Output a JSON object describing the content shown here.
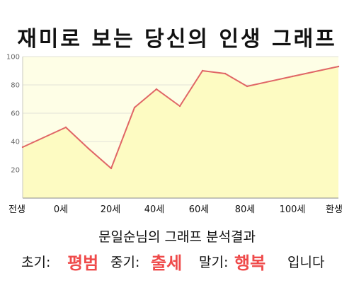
{
  "title": "재미로 보는 당신의 인생 그래프",
  "subtitle": "문일순님의 그래프 분석결과",
  "result": {
    "early_label": "초기:",
    "early_value": "평범",
    "middle_label": "중기:",
    "middle_value": "출세",
    "late_label": "말기:",
    "late_value": "행복",
    "ending": "입니다"
  },
  "colors": {
    "line": "#e06666",
    "fill": "#fdfbc2",
    "plot_bg": "#fefee6",
    "grid": "#e2e2d8",
    "highlight": "#ef4a4a"
  },
  "chart_data": {
    "type": "area",
    "x_labels": [
      "전생",
      "0세",
      "20세",
      "40세",
      "60세",
      "80세",
      "100세",
      "환생"
    ],
    "y_ticks": [
      "20",
      "40",
      "60",
      "80",
      "100"
    ],
    "ylim": [
      0,
      100
    ],
    "grid": true,
    "points": [
      {
        "x": "전생",
        "y": 36
      },
      {
        "x": "0세",
        "y": 50
      },
      {
        "x": "10세",
        "y": 35
      },
      {
        "x": "20세",
        "y": 21
      },
      {
        "x": "30세",
        "y": 64
      },
      {
        "x": "40세",
        "y": 77
      },
      {
        "x": "50세",
        "y": 65
      },
      {
        "x": "60세",
        "y": 90
      },
      {
        "x": "70세",
        "y": 88
      },
      {
        "x": "80세",
        "y": 79
      },
      {
        "x": "100세",
        "y": 86
      },
      {
        "x": "환생",
        "y": 93
      }
    ]
  }
}
